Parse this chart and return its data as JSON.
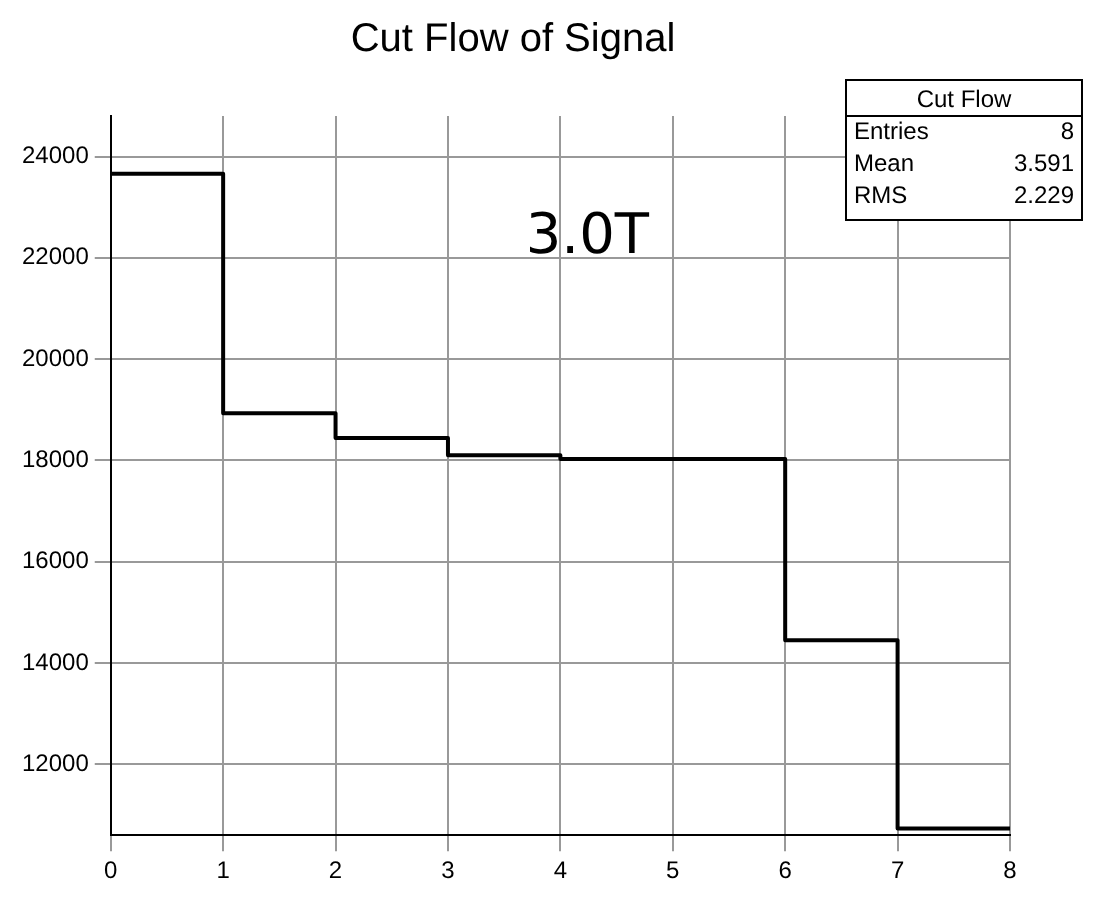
{
  "chart_data": {
    "type": "histogram",
    "title": "Cut Flow of Signal",
    "bins": [
      0,
      1,
      2,
      3,
      4,
      5,
      6,
      7,
      8
    ],
    "values": [
      23660,
      18930,
      18440,
      18100,
      18030,
      18030,
      14450,
      10730
    ],
    "color": "#000000",
    "xlim": [
      0,
      8
    ],
    "xticks": [
      0,
      1,
      2,
      3,
      4,
      5,
      6,
      7,
      8
    ],
    "ylim": [
      10600,
      24800
    ],
    "yticks": [
      12000,
      14000,
      16000,
      18000,
      20000,
      22000,
      24000
    ],
    "grid": true,
    "legend": false,
    "annotations": [
      "Cut Flow",
      "Entries 8",
      "Mean 3.591",
      "RMS 2.229",
      "3.0T"
    ]
  }
}
